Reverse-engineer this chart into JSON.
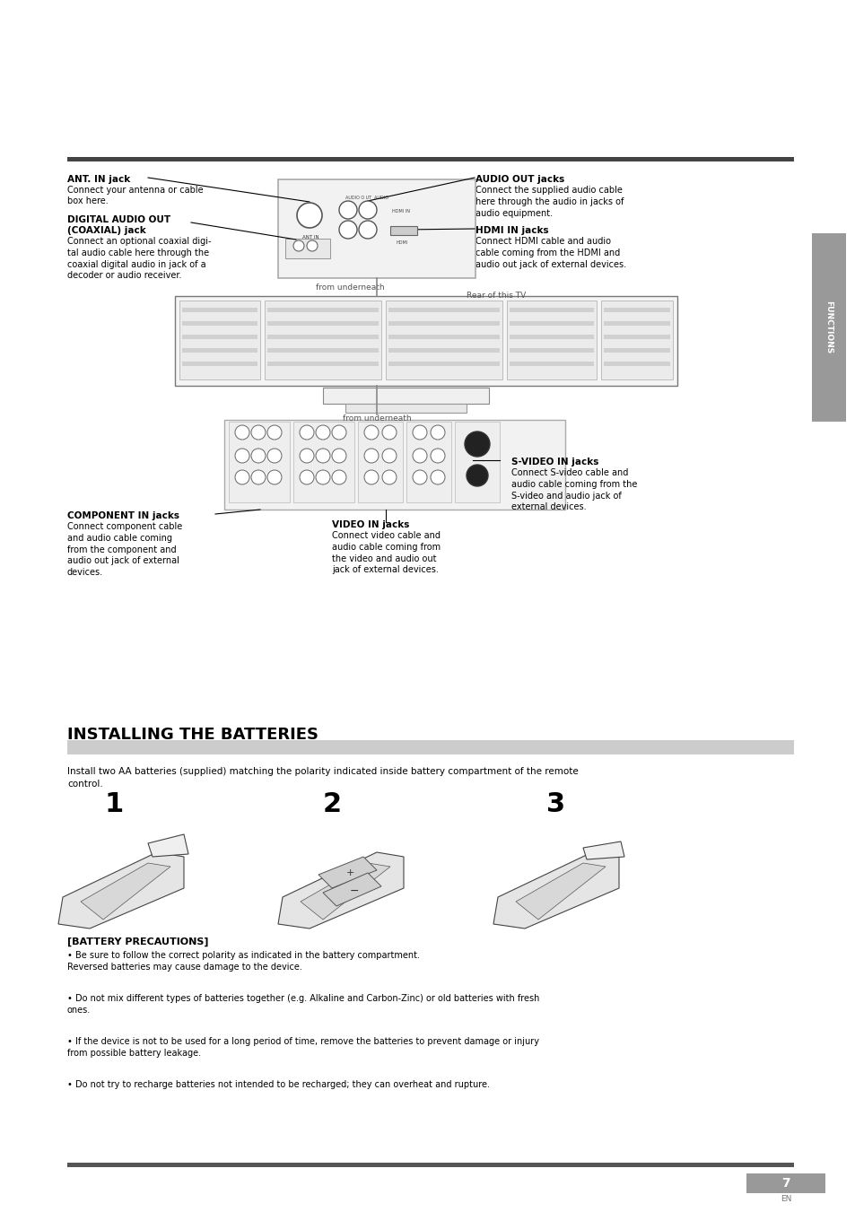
{
  "bg_color": "#ffffff",
  "page_width": 9.54,
  "page_height": 13.51,
  "dpi": 100,
  "top_bar_color": "#444444",
  "functions_tab_color": "#999999",
  "section_bar_color": "#bbbbbb",
  "dark_bar_color": "#555555",
  "page_num_bg": "#999999",
  "functions_text": "FUNCTIONS",
  "labels": {
    "ant_in_title": "ANT. IN jack",
    "ant_in_desc": "Connect your antenna or cable\nbox here.",
    "digital_title": "DIGITAL AUDIO OUT\n(COAXIAL) jack",
    "digital_desc": "Connect an optional coaxial digi-\ntal audio cable here through the\ncoaxial digital audio in jack of a\ndecoder or audio receiver.",
    "audio_out_title": "AUDIO OUT jacks",
    "audio_out_desc": "Connect the supplied audio cable\nhere through the audio in jacks of\naudio equipment.",
    "hdmi_title": "HDMI IN jacks",
    "hdmi_desc": "Connect HDMI cable and audio\ncable coming from the HDMI and\naudio out jack of external devices.",
    "svideo_title": "S-VIDEO IN jacks",
    "svideo_desc": "Connect S-video cable and\naudio cable coming from the\nS-video and audio jack of\nexternal devices.",
    "component_title": "COMPONENT IN jacks",
    "component_desc": "Connect component cable\nand audio cable coming\nfrom the component and\naudio out jack of external\ndevices.",
    "video_title": "VIDEO IN jacks",
    "video_desc": "Connect video cable and\naudio cable coming from\nthe video and audio out\njack of external devices.",
    "from_underneath1": "from underneath",
    "from_underneath2": "from underneath",
    "rear_of_tv": "Rear of this TV"
  },
  "installing_title": "INSTALLING THE BATTERIES",
  "battery_body": "Install two AA batteries (supplied) matching the polarity indicated inside battery compartment of the remote\ncontrol.",
  "precautions_title": "[BATTERY PRECAUTIONS]",
  "precautions": [
    "Be sure to follow the correct polarity as indicated in the battery compartment.\nReversed batteries may cause damage to the device.",
    "Do not mix different types of batteries together (e.g. Alkaline and Carbon-Zinc) or old batteries with fresh\nones.",
    "If the device is not to be used for a long period of time, remove the batteries to prevent damage or injury\nfrom possible battery leakage.",
    "Do not try to recharge batteries not intended to be recharged; they can overheat and rupture."
  ],
  "page_number": "7",
  "en_label": "EN"
}
